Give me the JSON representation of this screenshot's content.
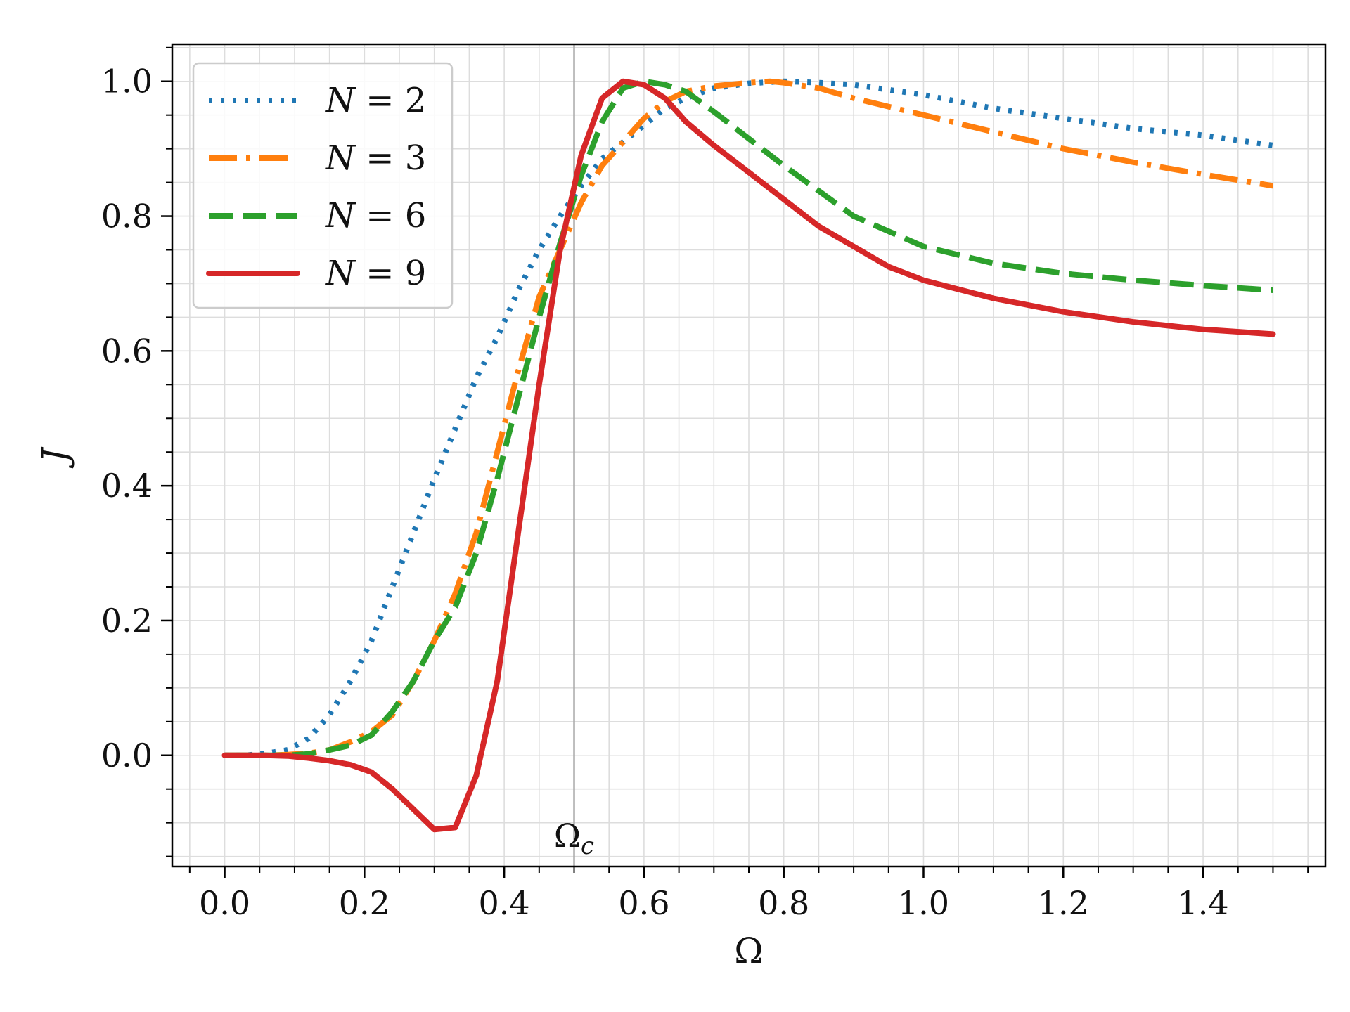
{
  "chart_data": {
    "type": "line",
    "title": "",
    "xlabel": "Ω",
    "ylabel": "J",
    "xlim": [
      -0.075,
      1.575
    ],
    "ylim": [
      -0.165,
      1.055
    ],
    "xticks": [
      0.0,
      0.2,
      0.4,
      0.6,
      0.8,
      1.0,
      1.2,
      1.4
    ],
    "xtick_labels": [
      "0.0",
      "0.2",
      "0.4",
      "0.6",
      "0.8",
      "1.0",
      "1.2",
      "1.4"
    ],
    "yticks": [
      0.0,
      0.2,
      0.4,
      0.6,
      0.8,
      1.0
    ],
    "ytick_labels": [
      "0.0",
      "0.2",
      "0.4",
      "0.6",
      "0.8",
      "1.0"
    ],
    "grid": true,
    "minor_grid": true,
    "legend_position": "top-left",
    "vline": {
      "x": 0.5,
      "label": "Ω_c",
      "label_main": "Ω",
      "label_sub": "c",
      "color": "#aaaaaa"
    },
    "series": [
      {
        "name": "N = 2",
        "name_var": "N",
        "name_value": "2",
        "color": "#1f77b4",
        "style": "dotted",
        "x": [
          0.0,
          0.03,
          0.06,
          0.09,
          0.12,
          0.15,
          0.18,
          0.21,
          0.24,
          0.27,
          0.3,
          0.33,
          0.36,
          0.39,
          0.42,
          0.45,
          0.48,
          0.51,
          0.54,
          0.57,
          0.6,
          0.63,
          0.66,
          0.7,
          0.75,
          0.8,
          0.85,
          0.9,
          1.0,
          1.1,
          1.2,
          1.3,
          1.4,
          1.5
        ],
        "y": [
          0.0,
          0.0,
          0.003,
          0.008,
          0.025,
          0.06,
          0.11,
          0.17,
          0.25,
          0.33,
          0.41,
          0.485,
          0.56,
          0.62,
          0.69,
          0.75,
          0.8,
          0.845,
          0.885,
          0.91,
          0.935,
          0.96,
          0.975,
          0.99,
          0.997,
          1.0,
          0.998,
          0.995,
          0.98,
          0.96,
          0.945,
          0.93,
          0.92,
          0.905
        ]
      },
      {
        "name": "N = 3",
        "name_var": "N",
        "name_value": "3",
        "color": "#ff7f0e",
        "style": "dashdot",
        "x": [
          0.0,
          0.03,
          0.06,
          0.09,
          0.12,
          0.15,
          0.18,
          0.21,
          0.24,
          0.27,
          0.3,
          0.33,
          0.36,
          0.39,
          0.42,
          0.45,
          0.48,
          0.51,
          0.54,
          0.57,
          0.6,
          0.63,
          0.66,
          0.7,
          0.75,
          0.78,
          0.8,
          0.85,
          0.9,
          1.0,
          1.1,
          1.2,
          1.3,
          1.4,
          1.5
        ],
        "y": [
          0.0,
          0.0,
          0.0,
          0.001,
          0.003,
          0.008,
          0.02,
          0.035,
          0.06,
          0.11,
          0.17,
          0.24,
          0.33,
          0.45,
          0.57,
          0.68,
          0.75,
          0.82,
          0.875,
          0.91,
          0.945,
          0.97,
          0.985,
          0.993,
          0.998,
          1.0,
          0.998,
          0.99,
          0.975,
          0.95,
          0.925,
          0.9,
          0.88,
          0.862,
          0.845
        ]
      },
      {
        "name": "N = 6",
        "name_var": "N",
        "name_value": "6",
        "color": "#2ca02c",
        "style": "dashed",
        "x": [
          0.0,
          0.03,
          0.06,
          0.09,
          0.12,
          0.15,
          0.18,
          0.21,
          0.24,
          0.27,
          0.3,
          0.33,
          0.36,
          0.39,
          0.42,
          0.45,
          0.48,
          0.51,
          0.54,
          0.57,
          0.6,
          0.63,
          0.66,
          0.7,
          0.75,
          0.8,
          0.9,
          1.0,
          1.1,
          1.2,
          1.3,
          1.4,
          1.5
        ],
        "y": [
          0.0,
          0.0,
          0.0,
          0.0,
          0.002,
          0.008,
          0.015,
          0.03,
          0.065,
          0.11,
          0.17,
          0.22,
          0.3,
          0.41,
          0.53,
          0.65,
          0.76,
          0.86,
          0.94,
          0.99,
          1.0,
          0.995,
          0.985,
          0.955,
          0.915,
          0.875,
          0.8,
          0.755,
          0.73,
          0.715,
          0.705,
          0.697,
          0.69
        ]
      },
      {
        "name": "N = 9",
        "name_var": "N",
        "name_value": "9",
        "color": "#d62728",
        "style": "solid",
        "x": [
          0.0,
          0.03,
          0.06,
          0.09,
          0.12,
          0.15,
          0.18,
          0.21,
          0.24,
          0.27,
          0.3,
          0.33,
          0.36,
          0.39,
          0.42,
          0.45,
          0.48,
          0.51,
          0.54,
          0.57,
          0.6,
          0.63,
          0.66,
          0.7,
          0.75,
          0.8,
          0.85,
          0.9,
          0.95,
          1.0,
          1.1,
          1.2,
          1.3,
          1.4,
          1.5
        ],
        "y": [
          0.0,
          0.0,
          0.0,
          -0.001,
          -0.004,
          -0.008,
          -0.014,
          -0.025,
          -0.05,
          -0.08,
          -0.11,
          -0.107,
          -0.03,
          0.11,
          0.33,
          0.55,
          0.75,
          0.89,
          0.975,
          1.0,
          0.995,
          0.975,
          0.94,
          0.905,
          0.865,
          0.825,
          0.785,
          0.755,
          0.725,
          0.705,
          0.678,
          0.658,
          0.643,
          0.632,
          0.625
        ]
      }
    ]
  }
}
